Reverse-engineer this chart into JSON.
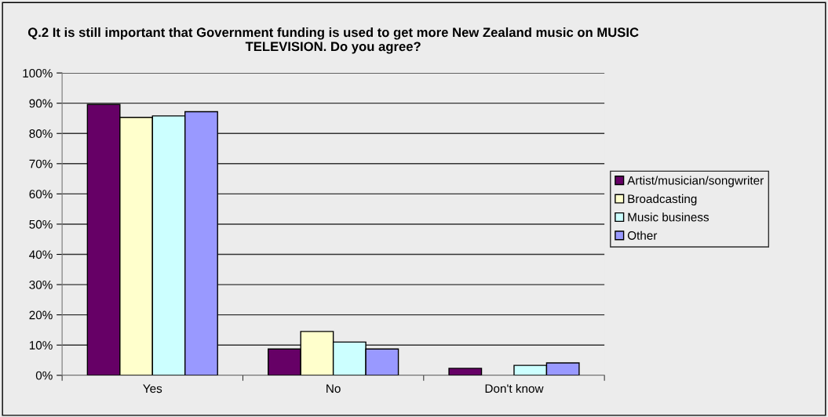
{
  "chart_data": {
    "type": "bar",
    "title": "Q.2 It is still important that Government funding is used to get more New Zealand music on MUSIC TELEVISION. Do you agree?",
    "categories": [
      "Yes",
      "No",
      "Don't know"
    ],
    "series": [
      {
        "name": "Artist/musician/songwriter",
        "color": "#660066",
        "values": [
          89.6,
          8.7,
          2.3
        ]
      },
      {
        "name": "Broadcasting",
        "color": "#ffffcc",
        "values": [
          85.3,
          14.5,
          null
        ]
      },
      {
        "name": "Music business",
        "color": "#ccffff",
        "values": [
          85.8,
          11.0,
          3.3
        ]
      },
      {
        "name": "Other",
        "color": "#9999ff",
        "values": [
          87.2,
          8.7,
          4.1
        ]
      }
    ],
    "ylim": [
      0,
      100
    ],
    "yticks": [
      {
        "value": 0,
        "label": "0%"
      },
      {
        "value": 10,
        "label": "10%"
      },
      {
        "value": 20,
        "label": "20%"
      },
      {
        "value": 30,
        "label": "30%"
      },
      {
        "value": 40,
        "label": "40%"
      },
      {
        "value": 50,
        "label": "50%"
      },
      {
        "value": 60,
        "label": "60%"
      },
      {
        "value": 70,
        "label": "70%"
      },
      {
        "value": 80,
        "label": "80%"
      },
      {
        "value": 90,
        "label": "90%"
      },
      {
        "value": 100,
        "label": "100%"
      }
    ],
    "grid": "y",
    "legend": "right"
  }
}
